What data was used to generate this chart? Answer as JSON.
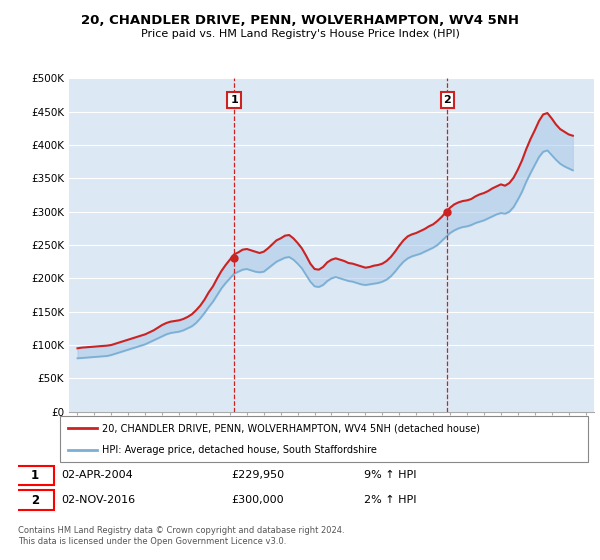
{
  "title": "20, CHANDLER DRIVE, PENN, WOLVERHAMPTON, WV4 5NH",
  "subtitle": "Price paid vs. HM Land Registry's House Price Index (HPI)",
  "ylim": [
    0,
    500000
  ],
  "yticks": [
    0,
    50000,
    100000,
    150000,
    200000,
    250000,
    300000,
    350000,
    400000,
    450000,
    500000
  ],
  "ytick_labels": [
    "£0",
    "£50K",
    "£100K",
    "£150K",
    "£200K",
    "£250K",
    "£300K",
    "£350K",
    "£400K",
    "£450K",
    "£500K"
  ],
  "xlim_start": 1994.5,
  "xlim_end": 2025.5,
  "bg_color": "#dce9f5",
  "line_color_hpi": "#7bafd4",
  "line_color_price": "#cc2222",
  "fill_color": "#aac8e8",
  "sale1_x": 2004.25,
  "sale1_y": 229950,
  "sale2_x": 2016.84,
  "sale2_y": 300000,
  "legend_label1": "20, CHANDLER DRIVE, PENN, WOLVERHAMPTON, WV4 5NH (detached house)",
  "legend_label2": "HPI: Average price, detached house, South Staffordshire",
  "annotation1_date": "02-APR-2004",
  "annotation1_price": "£229,950",
  "annotation1_hpi": "9% ↑ HPI",
  "annotation2_date": "02-NOV-2016",
  "annotation2_price": "£300,000",
  "annotation2_hpi": "2% ↑ HPI",
  "footer": "Contains HM Land Registry data © Crown copyright and database right 2024.\nThis data is licensed under the Open Government Licence v3.0.",
  "hpi_years": [
    1995.0,
    1995.25,
    1995.5,
    1995.75,
    1996.0,
    1996.25,
    1996.5,
    1996.75,
    1997.0,
    1997.25,
    1997.5,
    1997.75,
    1998.0,
    1998.25,
    1998.5,
    1998.75,
    1999.0,
    1999.25,
    1999.5,
    1999.75,
    2000.0,
    2000.25,
    2000.5,
    2000.75,
    2001.0,
    2001.25,
    2001.5,
    2001.75,
    2002.0,
    2002.25,
    2002.5,
    2002.75,
    2003.0,
    2003.25,
    2003.5,
    2003.75,
    2004.0,
    2004.25,
    2004.5,
    2004.75,
    2005.0,
    2005.25,
    2005.5,
    2005.75,
    2006.0,
    2006.25,
    2006.5,
    2006.75,
    2007.0,
    2007.25,
    2007.5,
    2007.75,
    2008.0,
    2008.25,
    2008.5,
    2008.75,
    2009.0,
    2009.25,
    2009.5,
    2009.75,
    2010.0,
    2010.25,
    2010.5,
    2010.75,
    2011.0,
    2011.25,
    2011.5,
    2011.75,
    2012.0,
    2012.25,
    2012.5,
    2012.75,
    2013.0,
    2013.25,
    2013.5,
    2013.75,
    2014.0,
    2014.25,
    2014.5,
    2014.75,
    2015.0,
    2015.25,
    2015.5,
    2015.75,
    2016.0,
    2016.25,
    2016.5,
    2016.75,
    2017.0,
    2017.25,
    2017.5,
    2017.75,
    2018.0,
    2018.25,
    2018.5,
    2018.75,
    2019.0,
    2019.25,
    2019.5,
    2019.75,
    2020.0,
    2020.25,
    2020.5,
    2020.75,
    2021.0,
    2021.25,
    2021.5,
    2021.75,
    2022.0,
    2022.25,
    2022.5,
    2022.75,
    2023.0,
    2023.25,
    2023.5,
    2023.75,
    2024.0,
    2024.25
  ],
  "hpi_vals": [
    80000,
    80500,
    81000,
    81500,
    82000,
    82500,
    83000,
    83500,
    85000,
    87000,
    89000,
    91000,
    93000,
    95000,
    97000,
    99000,
    101000,
    104000,
    107000,
    110000,
    113000,
    116000,
    118000,
    119000,
    120000,
    122000,
    125000,
    128000,
    133000,
    140000,
    148000,
    157000,
    165000,
    175000,
    185000,
    193000,
    200000,
    207000,
    210000,
    213000,
    214000,
    212000,
    210000,
    209000,
    210000,
    215000,
    220000,
    225000,
    228000,
    231000,
    232000,
    228000,
    222000,
    215000,
    205000,
    195000,
    188000,
    187000,
    190000,
    196000,
    200000,
    202000,
    200000,
    198000,
    196000,
    195000,
    193000,
    191000,
    190000,
    191000,
    192000,
    193000,
    195000,
    198000,
    203000,
    210000,
    218000,
    225000,
    230000,
    233000,
    235000,
    237000,
    240000,
    243000,
    246000,
    250000,
    256000,
    262000,
    268000,
    272000,
    275000,
    277000,
    278000,
    280000,
    283000,
    285000,
    287000,
    290000,
    293000,
    296000,
    298000,
    297000,
    300000,
    307000,
    318000,
    330000,
    345000,
    358000,
    370000,
    382000,
    390000,
    392000,
    385000,
    378000,
    372000,
    368000,
    365000,
    362000
  ],
  "price_vals": [
    95000,
    96000,
    96500,
    97000,
    97500,
    98000,
    98500,
    99000,
    100000,
    102000,
    104000,
    106000,
    108000,
    110000,
    112000,
    114000,
    116000,
    119000,
    122000,
    126000,
    130000,
    133000,
    135000,
    136000,
    137000,
    139000,
    142000,
    146000,
    152000,
    159000,
    168000,
    179000,
    188000,
    200000,
    211000,
    220000,
    228000,
    236000,
    239000,
    243000,
    244000,
    242000,
    240000,
    238000,
    240000,
    245000,
    251000,
    257000,
    260000,
    264000,
    265000,
    260000,
    253000,
    245000,
    234000,
    222000,
    214000,
    213000,
    217000,
    224000,
    228000,
    230000,
    228000,
    226000,
    223000,
    222000,
    220000,
    218000,
    216000,
    217000,
    219000,
    220000,
    222000,
    226000,
    232000,
    240000,
    249000,
    257000,
    263000,
    266000,
    268000,
    271000,
    274000,
    278000,
    281000,
    286000,
    292000,
    299000,
    306000,
    311000,
    314000,
    316000,
    317000,
    319000,
    323000,
    326000,
    328000,
    331000,
    335000,
    338000,
    341000,
    339000,
    343000,
    351000,
    363000,
    377000,
    394000,
    409000,
    422000,
    436000,
    446000,
    448000,
    440000,
    431000,
    424000,
    420000,
    416000,
    414000
  ]
}
